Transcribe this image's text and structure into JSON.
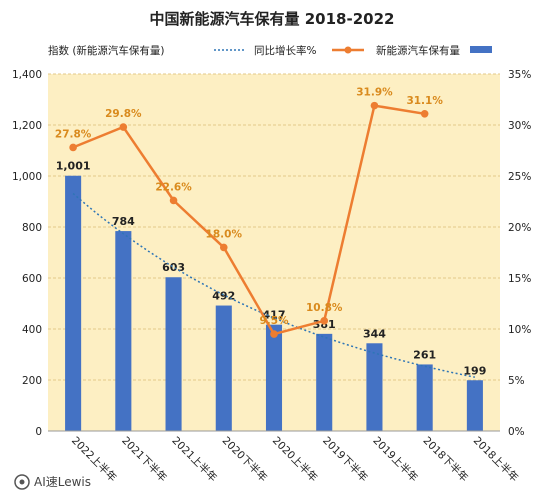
{
  "watermark": "AI速Lewis",
  "chart_data": {
    "type": "bar",
    "title": "中国新能源汽车保有量 2018-2022",
    "categories": [
      "2022上半年",
      "2021下半年",
      "2021上半年",
      "2020下半年",
      "2020上半年",
      "2019下半年",
      "2019上半年",
      "2018下半年",
      "2018上半年"
    ],
    "series": [
      {
        "name": "新能源汽车保有量",
        "type": "bar",
        "axis": "left",
        "color": "#4472c4",
        "values": [
          1001,
          784,
          603,
          492,
          417,
          381,
          344,
          261,
          199
        ],
        "labels": [
          "1,001",
          "784",
          "603",
          "492",
          "417",
          "381",
          "344",
          "261",
          "199"
        ]
      },
      {
        "name": "同比增长率%",
        "type": "line",
        "axis": "right",
        "color": "#ed7d31",
        "values": [
          27.8,
          29.8,
          22.6,
          18.0,
          9.5,
          10.8,
          31.9,
          31.1,
          null
        ],
        "labels": [
          "27.8%",
          "29.8%",
          "22.6%",
          "18.0%",
          "9.5%",
          "10.8%",
          "31.9%",
          "31.1%",
          ""
        ]
      },
      {
        "name": "指数 (新能源汽车保有量)",
        "type": "trendline",
        "axis": "left",
        "color": "#2e75b6"
      }
    ],
    "left_axis": {
      "min": 0,
      "max": 1400,
      "step": 200,
      "tick_labels": [
        "0",
        "200",
        "400",
        "600",
        "800",
        "1,000",
        "1,200",
        "1,400"
      ]
    },
    "right_axis": {
      "min": 0,
      "max": 35,
      "step": 5,
      "tick_labels": [
        "0%",
        "5%",
        "10%",
        "15%",
        "20%",
        "25%",
        "30%",
        "35%"
      ]
    },
    "legend_position": "top",
    "colors": {
      "plot_background": "#fdefc3",
      "gridline": "#e3c98a"
    }
  }
}
